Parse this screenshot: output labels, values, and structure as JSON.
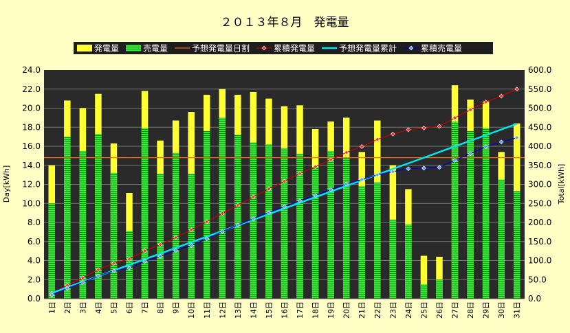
{
  "chart_data": {
    "type": "bar",
    "title": "２０１３年８月　発電量",
    "ylabel_left": "Day[kWh]",
    "ylabel_right": "Total[kWh]",
    "y_left_range": [
      0,
      24
    ],
    "y_left_ticks": [
      "0.0",
      "2.0",
      "4.0",
      "6.0",
      "8.0",
      "10.0",
      "12.0",
      "14.0",
      "16.0",
      "18.0",
      "20.0",
      "22.0",
      "24.0"
    ],
    "y_right_range": [
      0,
      600
    ],
    "y_right_ticks": [
      "0.0",
      "50.0",
      "100.0",
      "150.0",
      "200.0",
      "250.0",
      "300.0",
      "350.0",
      "400.0",
      "450.0",
      "500.0",
      "550.0",
      "600.0"
    ],
    "grid": true,
    "legend_position": "top",
    "categories": [
      "1日",
      "2日",
      "3日",
      "4日",
      "5日",
      "6日",
      "7日",
      "8日",
      "9日",
      "10日",
      "11日",
      "12日",
      "13日",
      "14日",
      "15日",
      "16日",
      "17日",
      "18日",
      "19日",
      "20日",
      "21日",
      "22日",
      "23日",
      "24日",
      "25日",
      "26日",
      "27日",
      "28日",
      "29日",
      "30日",
      "31日"
    ],
    "series": [
      {
        "name": "発電量",
        "kind": "bar",
        "axis": "left",
        "color": "#ffff33",
        "values": [
          14.0,
          20.8,
          20.0,
          21.5,
          16.3,
          11.1,
          21.8,
          16.6,
          18.7,
          19.6,
          21.4,
          22.0,
          21.4,
          21.7,
          21.0,
          20.2,
          20.3,
          17.8,
          18.6,
          19.0,
          15.4,
          18.7,
          14.0,
          11.5,
          4.5,
          4.4,
          22.4,
          20.9,
          20.7,
          15.4,
          18.4
        ]
      },
      {
        "name": "売電量",
        "kind": "bar",
        "axis": "left",
        "color": "#33cc33",
        "values": [
          10.0,
          17.0,
          15.5,
          17.3,
          13.2,
          7.1,
          17.9,
          13.1,
          15.3,
          13.1,
          17.6,
          19.0,
          17.2,
          16.4,
          16.2,
          15.8,
          15.2,
          13.8,
          15.5,
          14.8,
          11.8,
          12.2,
          8.3,
          7.8,
          1.5,
          2.0,
          18.6,
          17.6,
          17.9,
          12.5,
          11.3
        ]
      },
      {
        "name": "予想発電量日割",
        "kind": "line",
        "axis": "left",
        "color": "#ff6600",
        "values": [
          14.8,
          14.8,
          14.8,
          14.8,
          14.8,
          14.8,
          14.8,
          14.8,
          14.8,
          14.8,
          14.8,
          14.8,
          14.8,
          14.8,
          14.8,
          14.8,
          14.8,
          14.8,
          14.8,
          14.8,
          14.8,
          14.8,
          14.8,
          14.8,
          14.8,
          14.8,
          14.8,
          14.8,
          14.8,
          14.8,
          14.8
        ]
      },
      {
        "name": "累積発電量",
        "kind": "line",
        "axis": "right",
        "color": "#cc0000",
        "marker_fill": "#ff3333",
        "values": [
          14.0,
          34.8,
          54.8,
          76.3,
          92.6,
          103.7,
          125.5,
          142.1,
          160.8,
          180.4,
          201.8,
          223.8,
          245.2,
          266.9,
          287.9,
          308.1,
          328.4,
          346.2,
          364.8,
          383.8,
          399.2,
          417.9,
          431.9,
          443.4,
          447.9,
          452.3,
          474.7,
          495.6,
          516.3,
          531.7,
          550.1
        ]
      },
      {
        "name": "予想発電量累計",
        "kind": "line",
        "axis": "right",
        "color": "#00e5ee",
        "values": [
          14.8,
          29.6,
          44.4,
          59.2,
          74.0,
          88.8,
          103.6,
          118.4,
          133.2,
          148.0,
          162.8,
          177.6,
          192.4,
          207.2,
          222.0,
          236.8,
          251.6,
          266.4,
          281.2,
          296.0,
          310.8,
          325.6,
          340.4,
          355.2,
          370.0,
          384.8,
          399.6,
          414.4,
          429.2,
          444.0,
          458.8
        ]
      },
      {
        "name": "累積売電量",
        "kind": "line",
        "axis": "right",
        "color": "#0000cc",
        "marker_fill": "#6699ff",
        "values": [
          10.0,
          27.0,
          42.5,
          59.8,
          73.0,
          80.1,
          98.0,
          111.1,
          126.4,
          139.5,
          157.1,
          176.1,
          193.3,
          209.7,
          225.9,
          241.7,
          256.9,
          270.7,
          286.2,
          301.0,
          312.8,
          325.0,
          333.3,
          341.1,
          342.6,
          344.6,
          363.2,
          380.8,
          398.7,
          411.2,
          422.5
        ]
      }
    ]
  }
}
